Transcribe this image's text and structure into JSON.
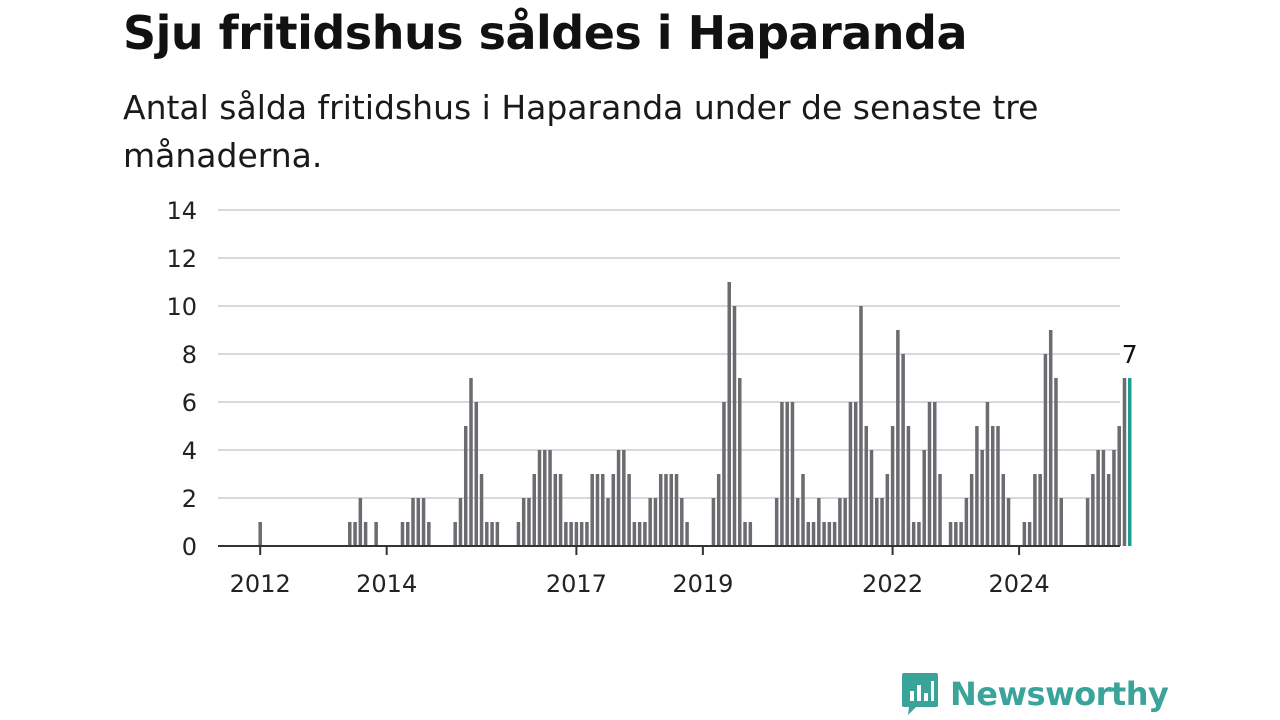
{
  "title": "Sju fritidshus såldes i Haparanda",
  "subtitle": "Antal sålda fritidshus i Haparanda under de senaste tre månaderna.",
  "logo": {
    "text": "Newsworthy",
    "icon": "bar-chart-bubble-icon",
    "color": "#3aa39a"
  },
  "chart_data": {
    "type": "bar",
    "title": "Sju fritidshus såldes i Haparanda",
    "subtitle": "Antal sålda fritidshus i Haparanda under de senaste tre månaderna.",
    "xlabel": "",
    "ylabel": "",
    "ylim": [
      0,
      14
    ],
    "yticks": [
      0,
      2,
      4,
      6,
      8,
      10,
      12,
      14
    ],
    "xticks": [
      "2012",
      "2014",
      "2017",
      "2019",
      "2022",
      "2024"
    ],
    "grid": true,
    "bar_color": "#6b6b70",
    "highlight_color": "#1a9e96",
    "annotation": {
      "label": "7",
      "target": "last"
    },
    "x_start": "2011-06",
    "values": [
      0,
      0,
      0,
      0,
      0,
      0,
      0,
      1,
      0,
      0,
      0,
      0,
      0,
      0,
      0,
      0,
      0,
      0,
      0,
      0,
      0,
      0,
      0,
      0,
      1,
      1,
      2,
      1,
      0,
      1,
      0,
      0,
      0,
      0,
      1,
      1,
      2,
      2,
      2,
      1,
      0,
      0,
      0,
      0,
      1,
      2,
      5,
      7,
      6,
      3,
      1,
      1,
      1,
      0,
      0,
      0,
      1,
      2,
      2,
      3,
      4,
      4,
      4,
      3,
      3,
      1,
      1,
      1,
      1,
      1,
      3,
      3,
      3,
      2,
      3,
      4,
      4,
      3,
      1,
      1,
      1,
      2,
      2,
      3,
      3,
      3,
      3,
      2,
      1,
      0,
      0,
      0,
      0,
      2,
      3,
      6,
      11,
      10,
      7,
      1,
      1,
      0,
      0,
      0,
      0,
      2,
      6,
      6,
      6,
      2,
      3,
      1,
      1,
      2,
      1,
      1,
      1,
      2,
      2,
      6,
      6,
      10,
      5,
      4,
      2,
      2,
      3,
      5,
      9,
      8,
      5,
      1,
      1,
      4,
      6,
      6,
      3,
      0,
      1,
      1,
      1,
      2,
      3,
      5,
      4,
      6,
      5,
      5,
      3,
      2,
      0,
      0,
      1,
      1,
      3,
      3,
      8,
      9,
      7,
      2,
      0,
      0,
      0,
      0,
      2,
      3,
      4,
      4,
      3,
      4,
      5,
      7,
      7
    ]
  }
}
